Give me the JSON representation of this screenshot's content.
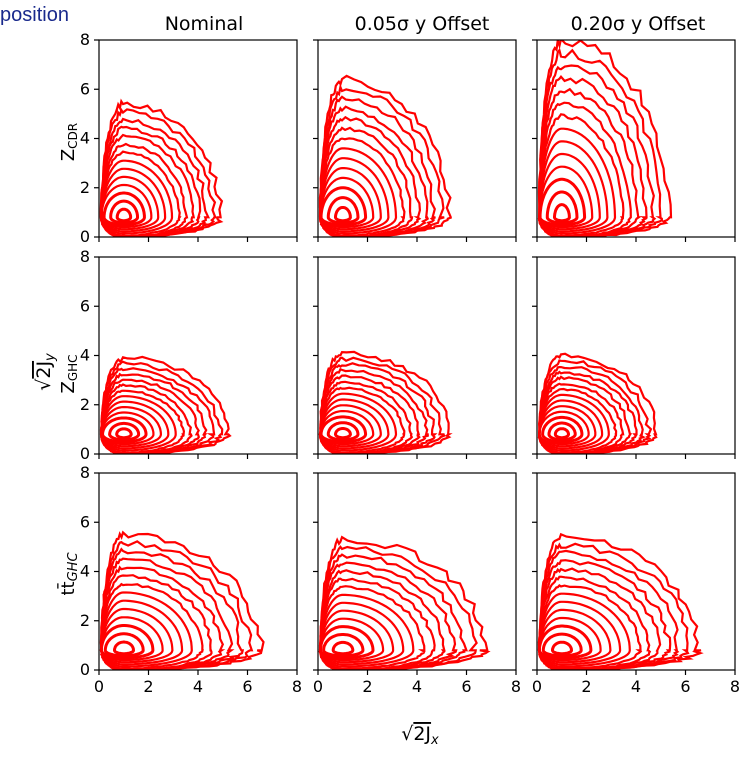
{
  "header_fragment": "position",
  "colors": {
    "contour": "#ff0000",
    "axis": "#000000",
    "header_text": "#1a2a8c"
  },
  "chart_data": {
    "type": "contour",
    "layout": "3x3 grid, shared axes",
    "column_titles": [
      "Nominal",
      "0.05σ y Offset",
      "0.20σ y Offset"
    ],
    "row_labels": [
      "Z_CDR",
      "Z_GHC",
      "tt̄_GHC"
    ],
    "xlabel": "√(2J_x)",
    "ylabel": "√(2J_y)",
    "xlim": [
      0,
      8
    ],
    "ylim": [
      0,
      8
    ],
    "xticks": [
      "0",
      "2",
      "4",
      "6",
      "8"
    ],
    "yticks": [
      "0",
      "2",
      "4",
      "6",
      "8"
    ],
    "contour_center": [
      1,
      0.8
    ],
    "panels": [
      {
        "row": "Z_CDR",
        "column": "Nominal",
        "max_x": 4.9,
        "max_y": 5.4
      },
      {
        "row": "Z_CDR",
        "column": "0.05σ y Offset",
        "max_x": 5.3,
        "max_y": 6.4
      },
      {
        "row": "Z_CDR",
        "column": "0.20σ y Offset",
        "max_x": 5.3,
        "max_y": 8.0
      },
      {
        "row": "Z_GHC",
        "column": "Nominal",
        "max_x": 5.2,
        "max_y": 3.9
      },
      {
        "row": "Z_GHC",
        "column": "0.05σ y Offset",
        "max_x": 5.3,
        "max_y": 4.1
      },
      {
        "row": "Z_GHC",
        "column": "0.20σ y Offset",
        "max_x": 4.8,
        "max_y": 4.0
      },
      {
        "row": "tt̄_GHC",
        "column": "Nominal",
        "max_x": 6.5,
        "max_y": 5.5
      },
      {
        "row": "tt̄_GHC",
        "column": "0.05σ y Offset",
        "max_x": 6.7,
        "max_y": 5.3
      },
      {
        "row": "tt̄_GHC",
        "column": "0.20σ y Offset",
        "max_x": 6.5,
        "max_y": 5.4
      }
    ]
  }
}
